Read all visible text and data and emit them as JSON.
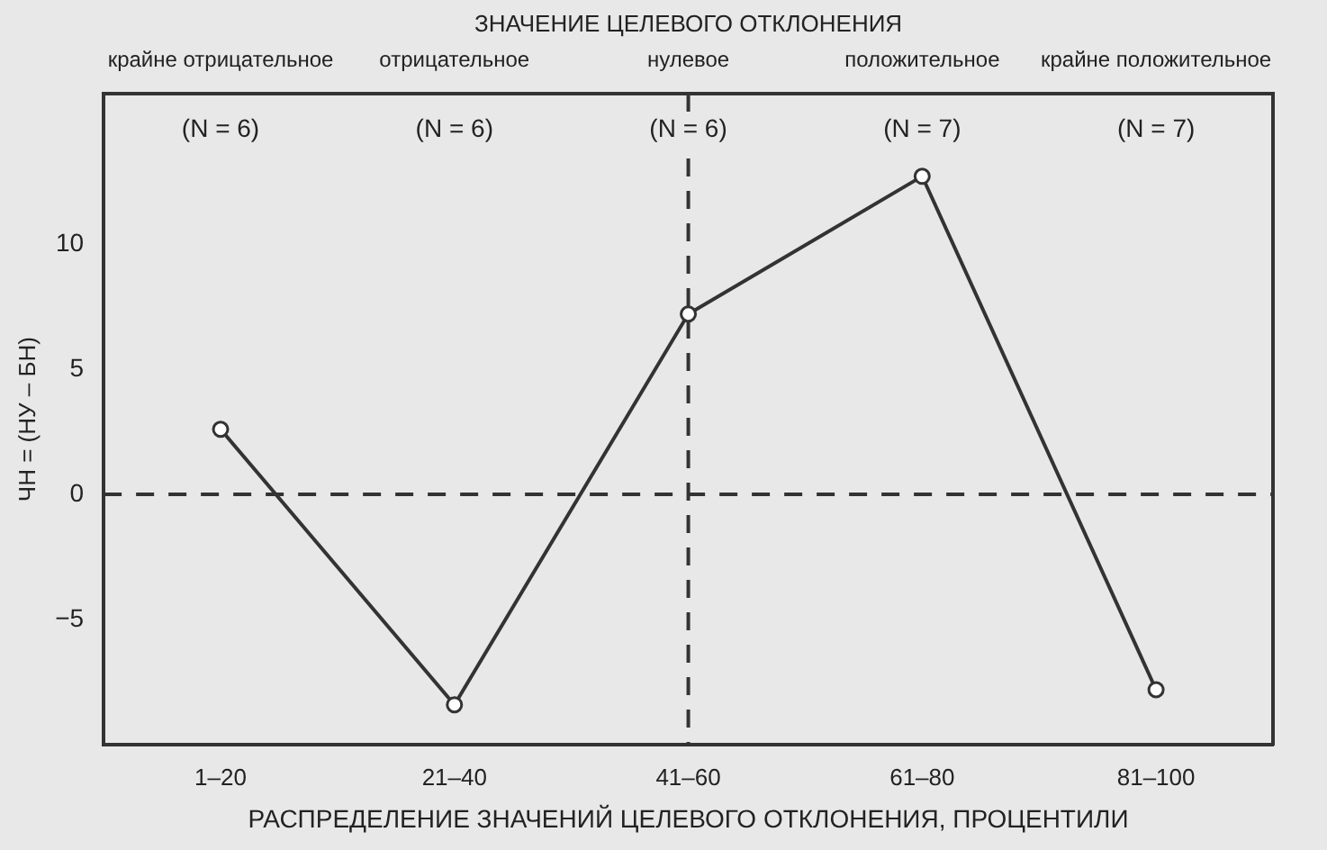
{
  "chart_data": {
    "type": "line",
    "x2label": "ЗНАЧЕНИЕ ЦЕЛЕВОГО ОТКЛОНЕНИЯ",
    "xlabel": "РАСПРЕДЕЛЕНИЕ ЗНАЧЕНИЙ ЦЕЛЕВОГО ОТКЛОНЕНИЯ, ПРОЦЕНТИЛИ",
    "ylabel": "ЧН = (НУ – БН)",
    "categories": [
      "1–20",
      "21–40",
      "41–60",
      "61–80",
      "81–100"
    ],
    "series": [
      {
        "color": "#333333",
        "values": [
          2.6,
          -8.4,
          7.2,
          12.7,
          -7.8
        ]
      }
    ],
    "ylim": [
      -10,
      16
    ],
    "yticks": [
      -5,
      0,
      5,
      10
    ],
    "ref_lines": [
      {
        "axis": "y",
        "value": 0,
        "line_style": "dashed"
      },
      {
        "axis": "x",
        "value": "41–60",
        "line_style": "dashed"
      }
    ],
    "annotations": [
      "крайне отрицательное",
      "отрицательное",
      "нулевое",
      "положительное",
      "крайне положительное",
      "(N = 6)",
      "(N = 6)",
      "(N = 6)",
      "(N = 7)",
      "(N = 7)"
    ],
    "marker": "circle",
    "line_style": "solid",
    "grid": false,
    "legend": false
  }
}
